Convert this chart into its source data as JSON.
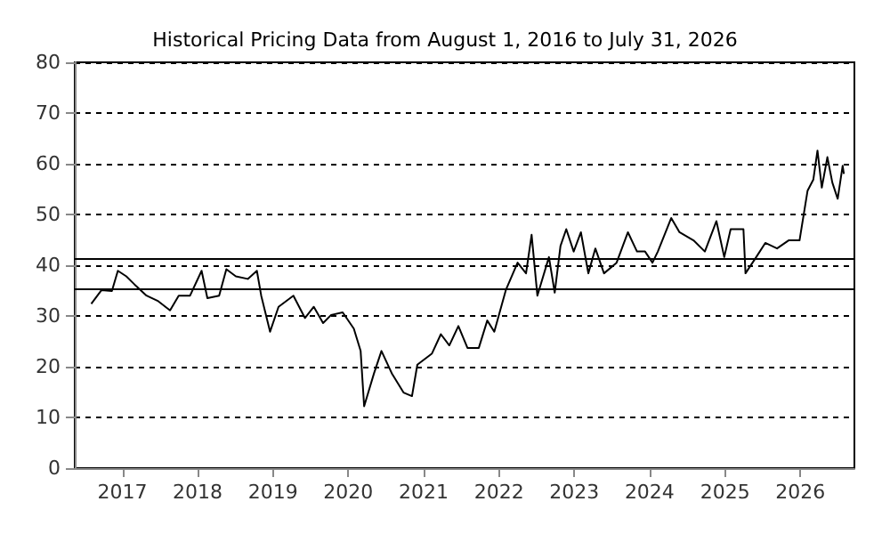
{
  "chart_data": {
    "type": "line",
    "title": "Historical Pricing Data from August 1, 2016 to July 31, 2026",
    "x": [
      "2016-08-03",
      "2016-09-22",
      "2016-11-11",
      "2016-12-10",
      "2017-01-20",
      "2017-03-01",
      "2017-04-28",
      "2017-06-24",
      "2017-08-20",
      "2017-10-01",
      "2017-11-25",
      "2018-01-20",
      "2018-02-17",
      "2018-04-15",
      "2018-05-20",
      "2018-07-05",
      "2018-09-01",
      "2018-10-15",
      "2018-11-05",
      "2018-12-18",
      "2019-01-28",
      "2019-04-10",
      "2019-06-05",
      "2019-07-18",
      "2019-09-01",
      "2019-10-10",
      "2019-12-05",
      "2020-01-28",
      "2020-03-01",
      "2020-03-18",
      "2020-05-05",
      "2020-06-10",
      "2020-07-30",
      "2020-09-25",
      "2020-11-05",
      "2020-12-01",
      "2021-02-10",
      "2021-03-25",
      "2021-05-05",
      "2021-06-18",
      "2021-08-01",
      "2021-09-25",
      "2021-11-05",
      "2021-12-09",
      "2022-02-03",
      "2022-04-01",
      "2022-05-12",
      "2022-06-08",
      "2022-07-06",
      "2022-08-31",
      "2022-09-28",
      "2022-10-26",
      "2022-11-23",
      "2022-12-29",
      "2023-02-02",
      "2023-03-10",
      "2023-04-13",
      "2023-05-25",
      "2023-07-25",
      "2023-09-18",
      "2023-11-01",
      "2023-12-10",
      "2024-01-15",
      "2024-02-10",
      "2024-04-15",
      "2024-05-25",
      "2024-08-01",
      "2024-09-25",
      "2024-11-20",
      "2024-12-28",
      "2025-01-28",
      "2025-03-31",
      "2025-04-10",
      "2025-06-01",
      "2025-07-15",
      "2025-09-10",
      "2025-11-05",
      "2025-12-28",
      "2026-02-05",
      "2026-03-05",
      "2026-03-25",
      "2026-04-15",
      "2026-05-12",
      "2026-06-05",
      "2026-07-01",
      "2026-07-25",
      "2026-07-31"
    ],
    "series": [
      {
        "color": "#000000",
        "values": [
          32.4,
          35.1,
          34.9,
          38.9,
          37.8,
          36.2,
          34.0,
          32.9,
          31.1,
          34.0,
          34.0,
          38.9,
          33.5,
          34.0,
          39.2,
          37.8,
          37.3,
          38.9,
          34.0,
          26.9,
          31.8,
          34.0,
          29.6,
          31.8,
          28.6,
          30.2,
          30.7,
          27.5,
          23.1,
          12.2,
          18.7,
          23.1,
          18.7,
          14.9,
          14.2,
          20.4,
          22.6,
          26.4,
          24.2,
          28.0,
          23.7,
          23.7,
          29.1,
          26.9,
          35.1,
          40.5,
          38.4,
          46.0,
          34.0,
          41.6,
          34.6,
          43.8,
          47.1,
          42.7,
          46.5,
          38.4,
          43.3,
          38.4,
          40.5,
          46.5,
          42.7,
          42.7,
          40.5,
          42.7,
          49.3,
          46.5,
          44.9,
          42.7,
          48.7,
          41.6,
          47.1,
          47.1,
          38.4,
          41.6,
          44.4,
          43.3,
          44.9,
          44.9,
          54.7,
          56.9,
          62.6,
          55.3,
          61.3,
          56.3,
          53.1,
          59.6,
          58.0
        ]
      }
    ],
    "xlim": [
      "2016-05-15",
      "2026-09-20"
    ],
    "xticks": [
      {
        "value": "2017-01-01",
        "label": "2017"
      },
      {
        "value": "2018-01-01",
        "label": "2018"
      },
      {
        "value": "2019-01-01",
        "label": "2019"
      },
      {
        "value": "2020-01-01",
        "label": "2020"
      },
      {
        "value": "2021-01-01",
        "label": "2021"
      },
      {
        "value": "2022-01-01",
        "label": "2022"
      },
      {
        "value": "2023-01-01",
        "label": "2023"
      },
      {
        "value": "2024-01-01",
        "label": "2024"
      },
      {
        "value": "2025-01-01",
        "label": "2025"
      },
      {
        "value": "2026-01-01",
        "label": "2026"
      }
    ],
    "ylim": [
      0,
      80
    ],
    "yticks": [
      0,
      10,
      20,
      30,
      40,
      50,
      60,
      70,
      80
    ],
    "grid": "y",
    "marker": "none",
    "line_style": "solid",
    "ref_lines": [
      {
        "axis": "y",
        "value": 41.3,
        "color": "#000000"
      },
      {
        "axis": "y",
        "value": 35.4,
        "color": "#000000"
      }
    ]
  }
}
